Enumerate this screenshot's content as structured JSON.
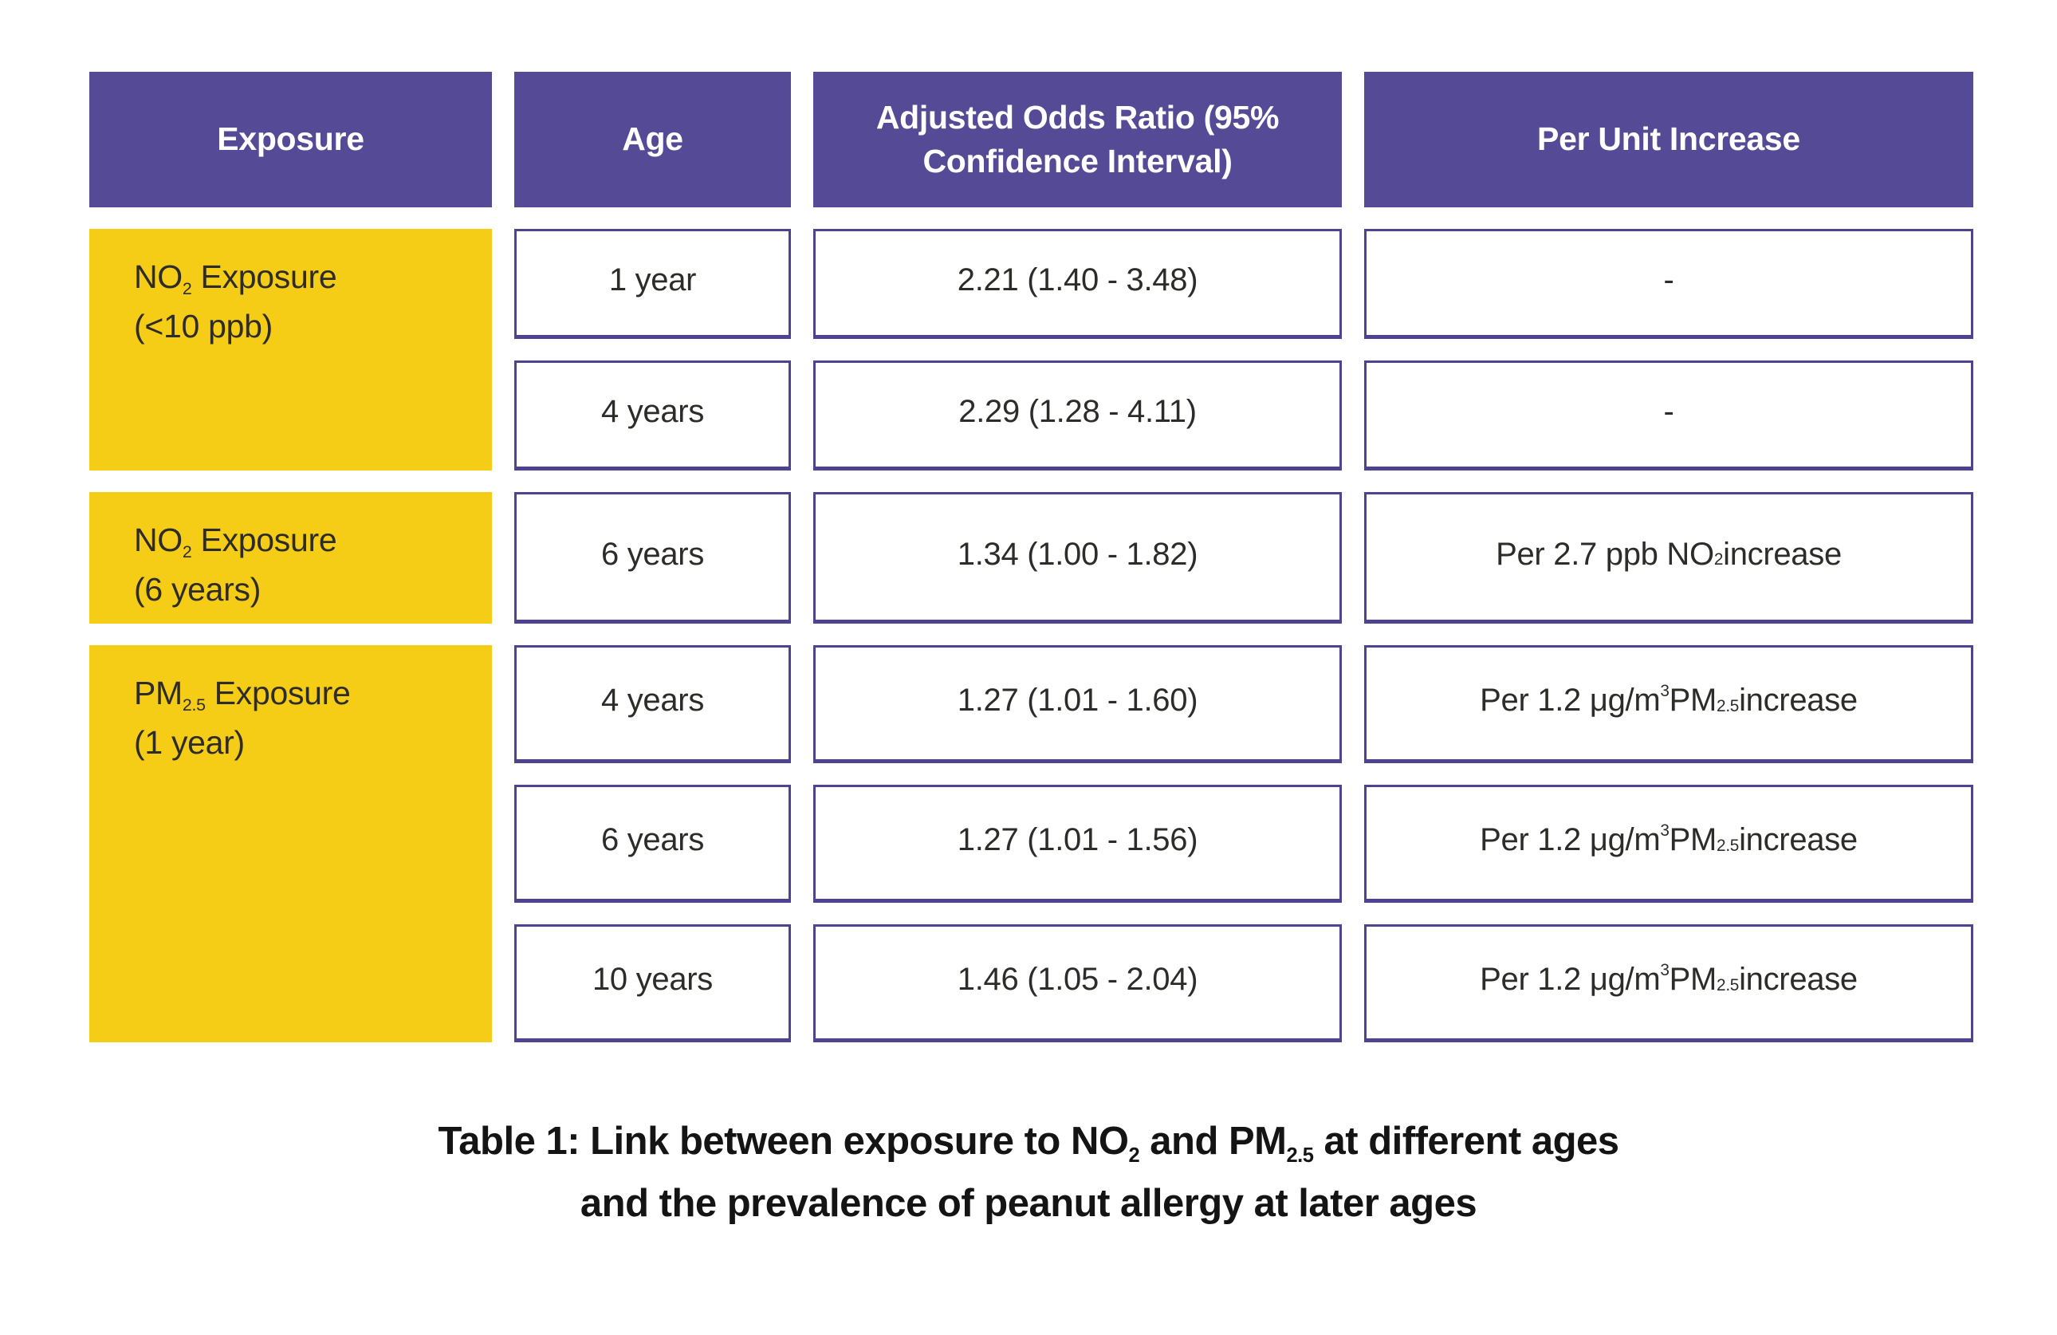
{
  "colors": {
    "header_bg": "#554A96",
    "cell_border": "#4E4391",
    "yellow": "#F5CC16",
    "header_text": "#FFFFFF",
    "body_text": "#2E2C29",
    "caption_text": "#141414"
  },
  "table": {
    "headers": [
      "Exposure",
      "Age",
      "Adjusted Odds Ratio (95% Confidence Interval)",
      "Per Unit Increase"
    ],
    "exposure_groups": [
      {
        "label": "NO₂ Exposure (<10 ppb)",
        "label_rich": [
          {
            "t": "text",
            "v": "NO"
          },
          {
            "t": "sub",
            "v": "2"
          },
          {
            "t": "text",
            "v": " Exposure"
          },
          {
            "t": "br"
          },
          {
            "t": "text",
            "v": "(<10 ppb)"
          }
        ]
      },
      {
        "label": "NO₂ Exposure (6 years)",
        "label_rich": [
          {
            "t": "text",
            "v": "NO"
          },
          {
            "t": "sub",
            "v": "2"
          },
          {
            "t": "text",
            "v": " Exposure"
          },
          {
            "t": "br"
          },
          {
            "t": "text",
            "v": "(6 years)"
          }
        ]
      },
      {
        "label": "PM₂.₅ Exposure (1 year)",
        "label_rich": [
          {
            "t": "text",
            "v": "PM"
          },
          {
            "t": "sub",
            "v": "2.5"
          },
          {
            "t": "text",
            "v": " Exposure"
          },
          {
            "t": "br"
          },
          {
            "t": "text",
            "v": "(1 year)"
          }
        ]
      }
    ],
    "rows": [
      {
        "age": "1 year",
        "aor": "2.21 (1.40 - 3.48)",
        "per_unit_rich": [
          {
            "t": "text",
            "v": "-"
          }
        ]
      },
      {
        "age": "4 years",
        "aor": "2.29 (1.28 - 4.11)",
        "per_unit_rich": [
          {
            "t": "text",
            "v": "-"
          }
        ]
      },
      {
        "age": "6 years",
        "aor": "1.34 (1.00 - 1.82)",
        "per_unit_rich": [
          {
            "t": "text",
            "v": "Per 2.7 ppb NO"
          },
          {
            "t": "sub",
            "v": "2"
          },
          {
            "t": "text",
            "v": " increase"
          }
        ]
      },
      {
        "age": "4 years",
        "aor": "1.27 (1.01 - 1.60)",
        "per_unit_rich": [
          {
            "t": "text",
            "v": "Per 1.2 μg/m"
          },
          {
            "t": "sup",
            "v": "3"
          },
          {
            "t": "text",
            "v": " PM"
          },
          {
            "t": "sub",
            "v": "2.5"
          },
          {
            "t": "text",
            "v": " increase"
          }
        ]
      },
      {
        "age": "6 years",
        "aor": "1.27 (1.01 - 1.56)",
        "per_unit_rich": [
          {
            "t": "text",
            "v": "Per 1.2 μg/m"
          },
          {
            "t": "sup",
            "v": "3"
          },
          {
            "t": "text",
            "v": " PM"
          },
          {
            "t": "sub",
            "v": "2.5"
          },
          {
            "t": "text",
            "v": " increase"
          }
        ]
      },
      {
        "age": "10 years",
        "aor": "1.46 (1.05 - 2.04)",
        "per_unit_rich": [
          {
            "t": "text",
            "v": "Per 1.2 μg/m"
          },
          {
            "t": "sup",
            "v": "3"
          },
          {
            "t": "text",
            "v": " PM"
          },
          {
            "t": "sub",
            "v": "2.5"
          },
          {
            "t": "text",
            "v": " increase"
          }
        ]
      }
    ]
  },
  "caption": {
    "line1": "Table 1: Link between exposure to NO₂ and PM₂.₅ at different ages",
    "line1_rich": [
      {
        "t": "text",
        "v": "Table 1: Link between exposure to NO"
      },
      {
        "t": "sub",
        "v": "2"
      },
      {
        "t": "text",
        "v": " and PM"
      },
      {
        "t": "sub",
        "v": "2.5"
      },
      {
        "t": "text",
        "v": " at different ages"
      }
    ],
    "line2": "and the prevalence of peanut allergy at later ages"
  },
  "chart_data": {
    "type": "table",
    "title": "Table 1: Link between exposure to NO₂ and PM₂.₅ at different ages and the prevalence of peanut allergy at later ages",
    "columns": [
      "Exposure",
      "Age",
      "Adjusted Odds Ratio (95% Confidence Interval)",
      "Per Unit Increase"
    ],
    "rows": [
      [
        "NO₂ Exposure (<10 ppb)",
        "1 year",
        "2.21 (1.40 - 3.48)",
        "-"
      ],
      [
        "NO₂ Exposure (<10 ppb)",
        "4 years",
        "2.29 (1.28 - 4.11)",
        "-"
      ],
      [
        "NO₂ Exposure (6 years)",
        "6 years",
        "1.34 (1.00 - 1.82)",
        "Per 2.7 ppb NO₂ increase"
      ],
      [
        "PM₂.₅ Exposure (1 year)",
        "4 years",
        "1.27 (1.01 - 1.60)",
        "Per 1.2 μg/m³ PM₂.₅ increase"
      ],
      [
        "PM₂.₅ Exposure (1 year)",
        "6 years",
        "1.27 (1.01 - 1.56)",
        "Per 1.2 μg/m³ PM₂.₅ increase"
      ],
      [
        "PM₂.₅ Exposure (1 year)",
        "10 years",
        "1.46 (1.05 - 2.04)",
        "Per 1.2 μg/m³ PM₂.₅ increase"
      ]
    ]
  }
}
